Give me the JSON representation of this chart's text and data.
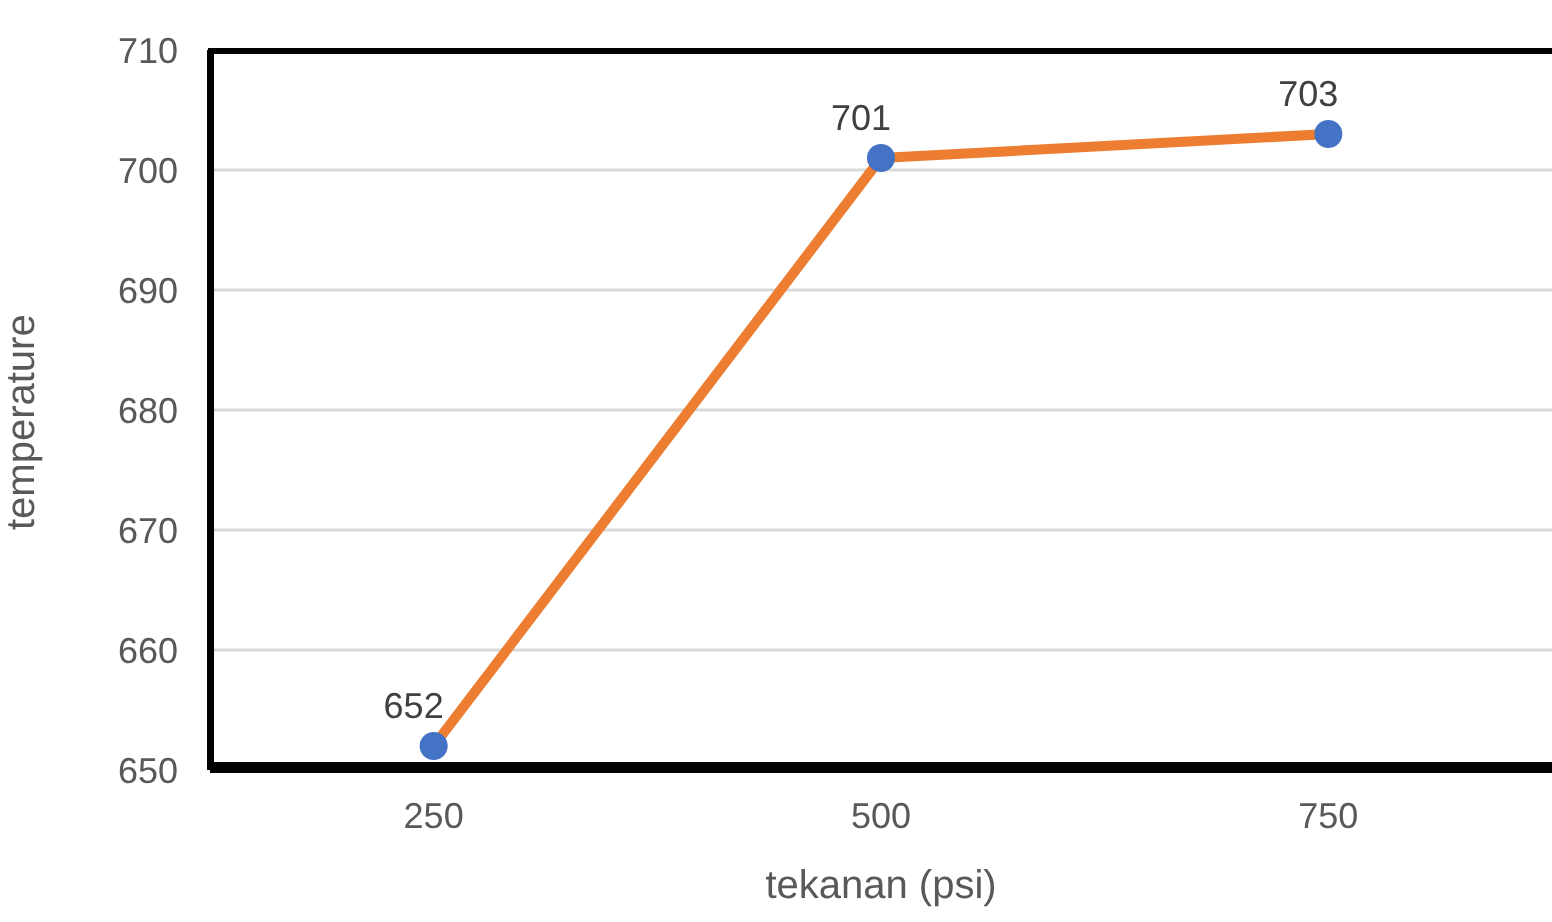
{
  "chart_data": {
    "type": "line",
    "xlabel": "tekanan (psi)",
    "ylabel": "temperature",
    "categories": [
      "250",
      "500",
      "750"
    ],
    "series": [
      {
        "color": "#ed7d31",
        "colors": [
          "#4472c4",
          "#4472c4",
          "#4472c4"
        ],
        "values": [
          652,
          701,
          703
        ]
      }
    ],
    "ylim": [
      650,
      710
    ],
    "yticks": [
      650,
      660,
      670,
      680,
      690,
      700,
      710
    ],
    "grid": "y",
    "marker": "circle",
    "data_labels": true,
    "legend": false
  }
}
